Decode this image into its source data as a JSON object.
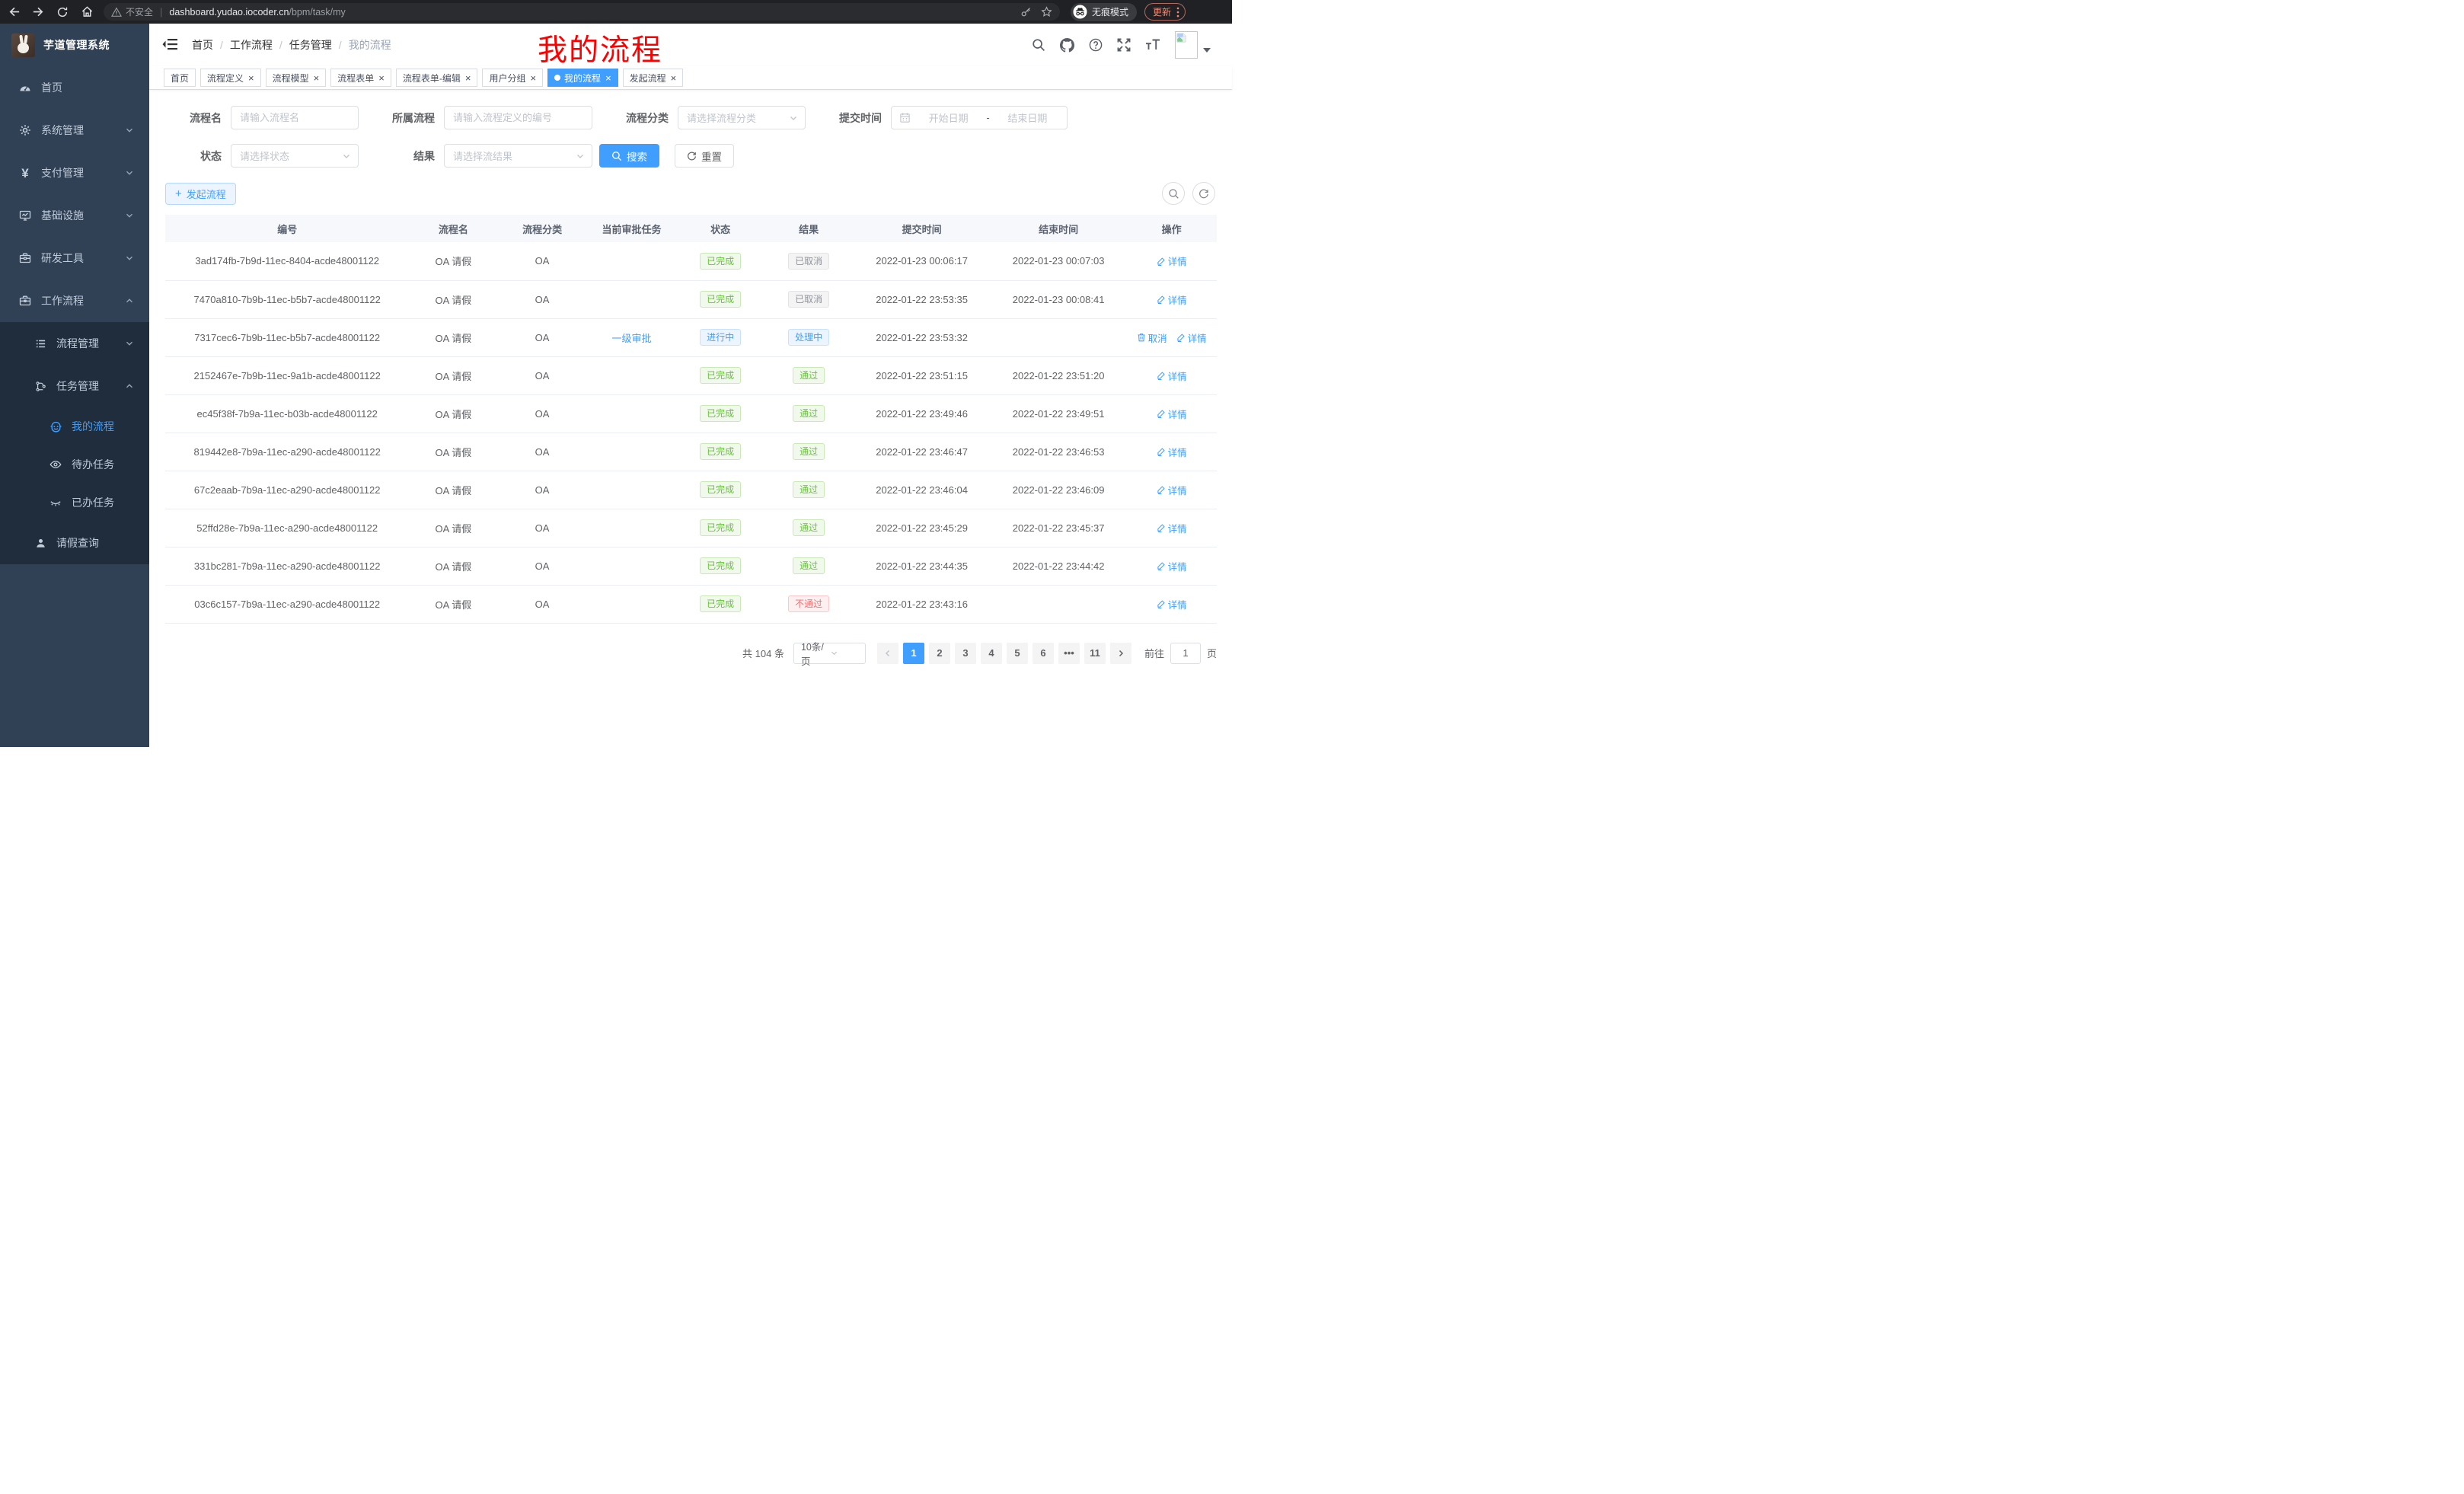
{
  "browser": {
    "security_label": "不安全",
    "url_domain": "dashboard.yudao.iocoder.cn",
    "url_path": "/bpm/task/my",
    "incognito_label": "无痕模式",
    "update_label": "更新"
  },
  "sidebar": {
    "title": "芋道管理系统",
    "items": [
      {
        "key": "home",
        "icon": "dashboard-icon",
        "label": "首页",
        "level": 1
      },
      {
        "key": "system-management",
        "icon": "gear-icon",
        "label": "系统管理",
        "level": 1,
        "chevron": "down"
      },
      {
        "key": "payment-management",
        "icon": "yen-icon",
        "label": "支付管理",
        "level": 1,
        "chevron": "down"
      },
      {
        "key": "infrastructure",
        "icon": "monitor-icon",
        "label": "基础设施",
        "level": 1,
        "chevron": "down"
      },
      {
        "key": "dev-tools",
        "icon": "toolbox-icon",
        "label": "研发工具",
        "level": 1,
        "chevron": "down"
      },
      {
        "key": "workflow",
        "icon": "briefcase-icon",
        "label": "工作流程",
        "level": 1,
        "chevron": "up"
      },
      {
        "key": "process-management",
        "icon": "list-icon",
        "label": "流程管理",
        "level": 2,
        "sub": true,
        "chevron": "down"
      },
      {
        "key": "task-management",
        "icon": "flow-icon",
        "label": "任务管理",
        "level": 2,
        "sub": true,
        "chevron": "up"
      },
      {
        "key": "my-process",
        "icon": "robot-icon",
        "label": "我的流程",
        "level": 3,
        "sub": true,
        "active": true
      },
      {
        "key": "todo-task",
        "icon": "eye-icon",
        "label": "待办任务",
        "level": 3,
        "sub": true
      },
      {
        "key": "done-task",
        "icon": "eye-closed-icon",
        "label": "已办任务",
        "level": 3,
        "sub": true
      },
      {
        "key": "leave-query",
        "icon": "user-icon",
        "label": "请假查询",
        "level": 2,
        "sub": true
      }
    ]
  },
  "header": {
    "breadcrumb": [
      {
        "label": "首页"
      },
      {
        "label": "工作流程"
      },
      {
        "label": "任务管理"
      },
      {
        "label": "我的流程",
        "current": true
      }
    ]
  },
  "annotation": {
    "text": "我的流程",
    "color": "#ff0000"
  },
  "tags": [
    {
      "key": "home",
      "label": "首页",
      "closable": false
    },
    {
      "key": "process-definition",
      "label": "流程定义",
      "closable": true
    },
    {
      "key": "process-model",
      "label": "流程模型",
      "closable": true
    },
    {
      "key": "process-form",
      "label": "流程表单",
      "closable": true
    },
    {
      "key": "process-form-edit",
      "label": "流程表单-编辑",
      "closable": true
    },
    {
      "key": "user-group",
      "label": "用户分组",
      "closable": true
    },
    {
      "key": "my-process",
      "label": "我的流程",
      "closable": true,
      "active": true
    },
    {
      "key": "start-process",
      "label": "发起流程",
      "closable": true
    }
  ],
  "filters": {
    "name_label": "流程名",
    "name_placeholder": "请输入流程名",
    "definition_label": "所属流程",
    "definition_placeholder": "请输入流程定义的编号",
    "category_label": "流程分类",
    "category_placeholder": "请选择流程分类",
    "time_label": "提交时间",
    "time_start_placeholder": "开始日期",
    "time_separator": "-",
    "time_end_placeholder": "结束日期",
    "status_label": "状态",
    "status_placeholder": "请选择状态",
    "result_label": "结果",
    "result_placeholder": "请选择流结果",
    "search_label": "搜索",
    "reset_label": "重置"
  },
  "toolbar": {
    "create_label": "发起流程"
  },
  "table": {
    "columns": [
      "编号",
      "流程名",
      "流程分类",
      "当前审批任务",
      "状态",
      "结果",
      "提交时间",
      "结束时间",
      "操作"
    ],
    "rows": [
      {
        "id": "3ad174fb-7b9d-11ec-8404-acde48001122",
        "name": "OA 请假",
        "category": "OA",
        "task": "",
        "status": "已完成",
        "status_type": "success",
        "result": "已取消",
        "result_type": "info",
        "submit_time": "2022-01-23 00:06:17",
        "end_time": "2022-01-23 00:07:03",
        "actions": [
          "详情"
        ]
      },
      {
        "id": "7470a810-7b9b-11ec-b5b7-acde48001122",
        "name": "OA 请假",
        "category": "OA",
        "task": "",
        "status": "已完成",
        "status_type": "success",
        "result": "已取消",
        "result_type": "info",
        "submit_time": "2022-01-22 23:53:35",
        "end_time": "2022-01-23 00:08:41",
        "actions": [
          "详情"
        ]
      },
      {
        "id": "7317cec6-7b9b-11ec-b5b7-acde48001122",
        "name": "OA 请假",
        "category": "OA",
        "task": "一级审批",
        "status": "进行中",
        "status_type": "primary",
        "result": "处理中",
        "result_type": "primary",
        "submit_time": "2022-01-22 23:53:32",
        "end_time": "",
        "actions": [
          "取消",
          "详情"
        ]
      },
      {
        "id": "2152467e-7b9b-11ec-9a1b-acde48001122",
        "name": "OA 请假",
        "category": "OA",
        "task": "",
        "status": "已完成",
        "status_type": "success",
        "result": "通过",
        "result_type": "success",
        "submit_time": "2022-01-22 23:51:15",
        "end_time": "2022-01-22 23:51:20",
        "actions": [
          "详情"
        ]
      },
      {
        "id": "ec45f38f-7b9a-11ec-b03b-acde48001122",
        "name": "OA 请假",
        "category": "OA",
        "task": "",
        "status": "已完成",
        "status_type": "success",
        "result": "通过",
        "result_type": "success",
        "submit_time": "2022-01-22 23:49:46",
        "end_time": "2022-01-22 23:49:51",
        "actions": [
          "详情"
        ]
      },
      {
        "id": "819442e8-7b9a-11ec-a290-acde48001122",
        "name": "OA 请假",
        "category": "OA",
        "task": "",
        "status": "已完成",
        "status_type": "success",
        "result": "通过",
        "result_type": "success",
        "submit_time": "2022-01-22 23:46:47",
        "end_time": "2022-01-22 23:46:53",
        "actions": [
          "详情"
        ]
      },
      {
        "id": "67c2eaab-7b9a-11ec-a290-acde48001122",
        "name": "OA 请假",
        "category": "OA",
        "task": "",
        "status": "已完成",
        "status_type": "success",
        "result": "通过",
        "result_type": "success",
        "submit_time": "2022-01-22 23:46:04",
        "end_time": "2022-01-22 23:46:09",
        "actions": [
          "详情"
        ]
      },
      {
        "id": "52ffd28e-7b9a-11ec-a290-acde48001122",
        "name": "OA 请假",
        "category": "OA",
        "task": "",
        "status": "已完成",
        "status_type": "success",
        "result": "通过",
        "result_type": "success",
        "submit_time": "2022-01-22 23:45:29",
        "end_time": "2022-01-22 23:45:37",
        "actions": [
          "详情"
        ]
      },
      {
        "id": "331bc281-7b9a-11ec-a290-acde48001122",
        "name": "OA 请假",
        "category": "OA",
        "task": "",
        "status": "已完成",
        "status_type": "success",
        "result": "通过",
        "result_type": "success",
        "submit_time": "2022-01-22 23:44:35",
        "end_time": "2022-01-22 23:44:42",
        "actions": [
          "详情"
        ]
      },
      {
        "id": "03c6c157-7b9a-11ec-a290-acde48001122",
        "name": "OA 请假",
        "category": "OA",
        "task": "",
        "status": "已完成",
        "status_type": "success",
        "result": "不通过",
        "result_type": "danger",
        "submit_time": "2022-01-22 23:43:16",
        "end_time": "",
        "actions": [
          "详情"
        ]
      }
    ]
  },
  "pagination": {
    "total_text": "共 104 条",
    "page_size": "10条/页",
    "pages": [
      {
        "label": "1",
        "active": true
      },
      {
        "label": "2"
      },
      {
        "label": "3"
      },
      {
        "label": "4"
      },
      {
        "label": "5"
      },
      {
        "label": "6"
      },
      {
        "label": "•••",
        "more": true
      },
      {
        "label": "11"
      }
    ],
    "goto_label": "前往",
    "goto_value": "1",
    "unit_label": "页"
  },
  "colors": {
    "accent": "#409eff",
    "success": "#67c23a",
    "info": "#909399",
    "danger": "#f56c6c",
    "sidebar_bg": "#304156",
    "submenu_bg": "#1f2d3d",
    "chrome_bg": "#202124"
  }
}
